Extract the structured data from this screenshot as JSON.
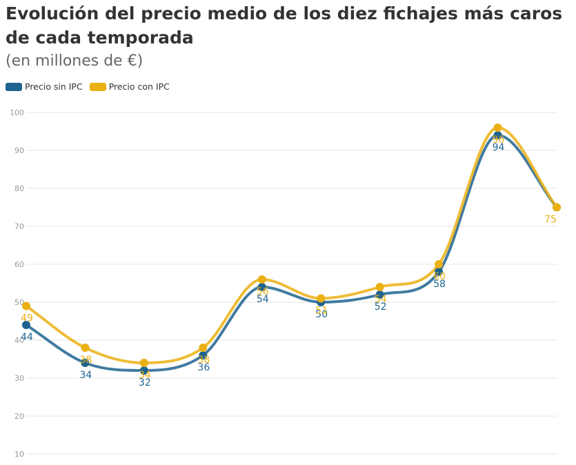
{
  "chart_data": {
    "type": "line",
    "title": "Evolución del precio medio de los diez fichajes más caros de cada temporada",
    "subtitle": "(en millones de €)",
    "xlabel": "",
    "ylabel": "",
    "ylim": [
      10,
      100
    ],
    "yticks": [
      10,
      20,
      30,
      40,
      50,
      60,
      70,
      80,
      90,
      100
    ],
    "grid": true,
    "legend": "top-left",
    "series": [
      {
        "name": "Precio sin IPC",
        "color": "#1f6491",
        "values": [
          44,
          34,
          32,
          36,
          54,
          50,
          52,
          58,
          94,
          75
        ],
        "labels": [
          "44",
          "34",
          "32",
          "36",
          "54",
          "50",
          "52",
          "58",
          "94",
          ""
        ]
      },
      {
        "name": "Precio con IPC",
        "color": "#ebb013",
        "values": [
          49,
          38,
          34,
          38,
          56,
          51,
          54,
          60,
          96,
          75
        ],
        "labels": [
          "49",
          "38",
          "34",
          "38",
          "56",
          "51",
          "54",
          "60",
          "96",
          "75"
        ]
      }
    ]
  }
}
